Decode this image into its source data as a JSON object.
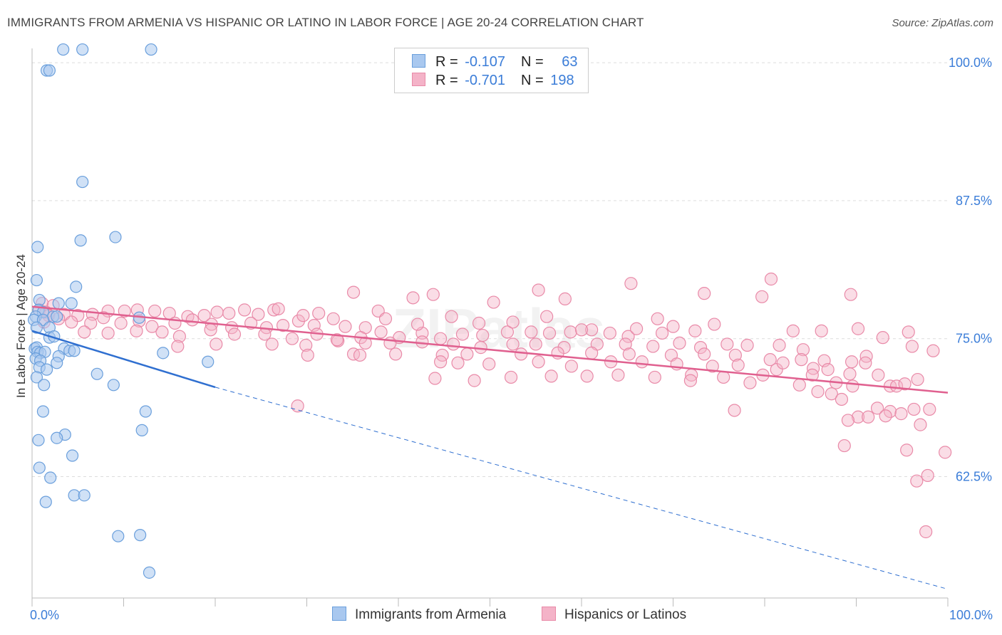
{
  "title": "IMMIGRANTS FROM ARMENIA VS HISPANIC OR LATINO IN LABOR FORCE | AGE 20-24 CORRELATION CHART",
  "source": "Source: ZipAtlas.com",
  "watermark": "ZIPatlas",
  "legend": {
    "rows": [
      {
        "r_label": "R = ",
        "r_value": "-0.107",
        "n_label": "N = ",
        "n_value": "63"
      },
      {
        "r_label": "R = ",
        "r_value": "-0.701",
        "n_label": "N = ",
        "n_value": "198"
      }
    ]
  },
  "colors": {
    "blue_fill": "#a9c8ef",
    "blue_stroke": "#6a9fdc",
    "blue_line": "#2f6fd0",
    "pink_fill": "#f4b3c8",
    "pink_stroke": "#e98aa8",
    "pink_line": "#e0608f",
    "axis_label": "#3b7dd8",
    "grid": "#dddddd"
  },
  "chart_data": {
    "type": "scatter",
    "title": "IMMIGRANTS FROM ARMENIA VS HISPANIC OR LATINO IN LABOR FORCE | AGE 20-24 CORRELATION CHART",
    "xlabel": "",
    "ylabel": "In Labor Force | Age 20-24",
    "xlim": [
      0,
      100
    ],
    "ylim": [
      51.5,
      101.3
    ],
    "x_tick_labels": [
      "0.0%",
      "100.0%"
    ],
    "y_ticks": [
      100.0,
      87.5,
      75.0,
      62.5
    ],
    "y_tick_labels": [
      "100.0%",
      "87.5%",
      "75.0%",
      "62.5%"
    ],
    "grid": true,
    "legend_position": "bottom",
    "series": [
      {
        "name": "Immigrants from Armenia",
        "color": "#a9c8ef",
        "trend": {
          "x": [
            0,
            20
          ],
          "y": [
            75.7,
            70.6
          ],
          "dashed_to": [
            100,
            52.3
          ]
        },
        "points": [
          [
            3.4,
            101.2
          ],
          [
            5.5,
            101.2
          ],
          [
            13.0,
            101.2
          ],
          [
            1.6,
            99.3
          ],
          [
            1.9,
            99.3
          ],
          [
            5.5,
            89.2
          ],
          [
            5.3,
            83.9
          ],
          [
            9.1,
            84.2
          ],
          [
            0.6,
            83.3
          ],
          [
            0.5,
            80.3
          ],
          [
            4.8,
            79.7
          ],
          [
            0.8,
            78.5
          ],
          [
            2.9,
            78.2
          ],
          [
            4.3,
            78.2
          ],
          [
            0.7,
            77.6
          ],
          [
            1.2,
            77.4
          ],
          [
            0.4,
            77.0
          ],
          [
            2.3,
            77.0
          ],
          [
            2.7,
            77.0
          ],
          [
            0.2,
            76.7
          ],
          [
            1.2,
            76.7
          ],
          [
            11.7,
            76.9
          ],
          [
            0.5,
            76.0
          ],
          [
            1.9,
            76.0
          ],
          [
            1.9,
            75.1
          ],
          [
            2.4,
            75.2
          ],
          [
            0.3,
            74.1
          ],
          [
            0.5,
            74.2
          ],
          [
            3.5,
            74.1
          ],
          [
            4.1,
            73.9
          ],
          [
            4.6,
            73.9
          ],
          [
            0.6,
            73.8
          ],
          [
            0.9,
            73.7
          ],
          [
            1.4,
            73.8
          ],
          [
            2.9,
            73.4
          ],
          [
            14.3,
            73.7
          ],
          [
            0.4,
            73.2
          ],
          [
            0.9,
            73.0
          ],
          [
            2.7,
            72.8
          ],
          [
            19.2,
            72.9
          ],
          [
            0.8,
            72.4
          ],
          [
            1.6,
            72.2
          ],
          [
            7.1,
            71.8
          ],
          [
            0.5,
            71.5
          ],
          [
            1.3,
            70.8
          ],
          [
            8.9,
            70.8
          ],
          [
            1.2,
            68.4
          ],
          [
            12.4,
            68.4
          ],
          [
            12.0,
            66.7
          ],
          [
            3.6,
            66.3
          ],
          [
            0.7,
            65.8
          ],
          [
            2.7,
            66.0
          ],
          [
            4.4,
            64.4
          ],
          [
            0.8,
            63.3
          ],
          [
            2.0,
            62.4
          ],
          [
            1.5,
            60.2
          ],
          [
            4.6,
            60.8
          ],
          [
            5.7,
            60.8
          ],
          [
            9.4,
            57.1
          ],
          [
            11.8,
            57.2
          ],
          [
            12.8,
            53.8
          ]
        ]
      },
      {
        "name": "Hispanics or Latinos",
        "color": "#f4b3c8",
        "trend": {
          "x": [
            0,
            100
          ],
          "y": [
            77.9,
            70.1
          ]
        },
        "points": [
          [
            1.1,
            78.2
          ],
          [
            2.3,
            78.0
          ],
          [
            0.8,
            77.6
          ],
          [
            1.5,
            77.4
          ],
          [
            1.8,
            77.1
          ],
          [
            3.5,
            77.2
          ],
          [
            5.0,
            77.1
          ],
          [
            6.6,
            77.2
          ],
          [
            8.3,
            77.5
          ],
          [
            10.1,
            77.5
          ],
          [
            11.5,
            77.6
          ],
          [
            13.4,
            77.5
          ],
          [
            15.0,
            77.3
          ],
          [
            17.0,
            77.0
          ],
          [
            18.8,
            77.1
          ],
          [
            20.2,
            77.4
          ],
          [
            21.5,
            77.3
          ],
          [
            23.2,
            77.6
          ],
          [
            24.7,
            77.2
          ],
          [
            26.4,
            77.6
          ],
          [
            1.3,
            76.5
          ],
          [
            2.9,
            76.8
          ],
          [
            4.3,
            76.5
          ],
          [
            6.4,
            76.4
          ],
          [
            7.8,
            76.9
          ],
          [
            9.7,
            76.4
          ],
          [
            11.7,
            76.6
          ],
          [
            13.1,
            76.1
          ],
          [
            15.6,
            76.4
          ],
          [
            17.5,
            76.7
          ],
          [
            19.6,
            76.3
          ],
          [
            21.8,
            76.0
          ],
          [
            23.9,
            76.4
          ],
          [
            25.6,
            76.0
          ],
          [
            27.4,
            76.2
          ],
          [
            29.1,
            76.6
          ],
          [
            30.8,
            76.2
          ],
          [
            32.9,
            76.8
          ],
          [
            34.2,
            76.1
          ],
          [
            36.4,
            76.0
          ],
          [
            5.7,
            75.6
          ],
          [
            8.3,
            75.5
          ],
          [
            11.4,
            75.7
          ],
          [
            14.2,
            75.6
          ],
          [
            16.1,
            75.2
          ],
          [
            19.5,
            75.8
          ],
          [
            22.1,
            75.4
          ],
          [
            25.4,
            75.4
          ],
          [
            28.4,
            75.0
          ],
          [
            31.1,
            75.4
          ],
          [
            33.4,
            74.8
          ],
          [
            35.9,
            75.1
          ],
          [
            38.1,
            75.6
          ],
          [
            40.1,
            75.1
          ],
          [
            42.6,
            75.5
          ],
          [
            44.6,
            75.0
          ],
          [
            47.0,
            75.4
          ],
          [
            49.2,
            75.3
          ],
          [
            51.9,
            75.6
          ],
          [
            54.5,
            75.6
          ],
          [
            56.5,
            75.5
          ],
          [
            58.8,
            75.6
          ],
          [
            61.1,
            75.8
          ],
          [
            63.1,
            75.5
          ],
          [
            65.1,
            75.2
          ],
          [
            68.8,
            75.5
          ],
          [
            72.4,
            75.7
          ],
          [
            15.9,
            74.3
          ],
          [
            20.1,
            74.5
          ],
          [
            26.2,
            74.5
          ],
          [
            29.9,
            74.4
          ],
          [
            33.3,
            74.9
          ],
          [
            36.4,
            74.6
          ],
          [
            39.1,
            74.6
          ],
          [
            42.6,
            74.7
          ],
          [
            46.0,
            74.5
          ],
          [
            49.0,
            74.2
          ],
          [
            52.5,
            74.5
          ],
          [
            55.0,
            74.5
          ],
          [
            58.1,
            74.2
          ],
          [
            61.7,
            74.5
          ],
          [
            64.8,
            74.5
          ],
          [
            67.8,
            74.3
          ],
          [
            70.7,
            74.6
          ],
          [
            73.0,
            74.2
          ],
          [
            75.9,
            74.5
          ],
          [
            78.1,
            74.4
          ],
          [
            81.6,
            74.4
          ],
          [
            84.2,
            74.0
          ],
          [
            30.1,
            73.5
          ],
          [
            35.1,
            73.6
          ],
          [
            39.7,
            73.6
          ],
          [
            44.8,
            73.5
          ],
          [
            47.5,
            73.6
          ],
          [
            53.4,
            73.6
          ],
          [
            57.4,
            73.7
          ],
          [
            61.1,
            73.7
          ],
          [
            65.2,
            73.6
          ],
          [
            69.8,
            73.5
          ],
          [
            73.4,
            73.6
          ],
          [
            76.8,
            73.5
          ],
          [
            80.6,
            73.1
          ],
          [
            84.0,
            73.1
          ],
          [
            86.5,
            73.0
          ],
          [
            89.5,
            72.9
          ],
          [
            91.1,
            73.4
          ],
          [
            35.8,
            73.5
          ],
          [
            44.6,
            72.9
          ],
          [
            46.5,
            72.8
          ],
          [
            49.9,
            72.7
          ],
          [
            55.3,
            72.9
          ],
          [
            58.9,
            72.5
          ],
          [
            63.2,
            72.9
          ],
          [
            66.6,
            72.9
          ],
          [
            70.4,
            72.7
          ],
          [
            74.3,
            72.5
          ],
          [
            77.1,
            72.6
          ],
          [
            81.3,
            72.2
          ],
          [
            82.0,
            72.8
          ],
          [
            85.3,
            72.3
          ],
          [
            86.9,
            72.2
          ],
          [
            89.3,
            71.8
          ],
          [
            91.0,
            72.8
          ],
          [
            44.0,
            71.4
          ],
          [
            48.3,
            71.2
          ],
          [
            52.3,
            71.5
          ],
          [
            56.7,
            71.6
          ],
          [
            60.6,
            71.6
          ],
          [
            64.0,
            71.7
          ],
          [
            68.0,
            71.5
          ],
          [
            72.0,
            71.7
          ],
          [
            75.5,
            71.5
          ],
          [
            79.8,
            71.7
          ],
          [
            85.2,
            71.7
          ],
          [
            92.4,
            71.7
          ],
          [
            96.7,
            71.3
          ],
          [
            87.8,
            71.0
          ],
          [
            93.7,
            70.7
          ],
          [
            71.9,
            71.2
          ],
          [
            78.4,
            71.0
          ],
          [
            83.8,
            70.8
          ],
          [
            89.6,
            70.7
          ],
          [
            94.4,
            70.7
          ],
          [
            85.8,
            70.2
          ],
          [
            87.3,
            70.0
          ],
          [
            88.4,
            69.5
          ],
          [
            95.3,
            70.9
          ],
          [
            29.0,
            68.9
          ],
          [
            76.7,
            68.5
          ],
          [
            92.3,
            68.7
          ],
          [
            93.7,
            68.4
          ],
          [
            94.9,
            68.2
          ],
          [
            96.3,
            68.6
          ],
          [
            98.0,
            68.6
          ],
          [
            90.2,
            67.9
          ],
          [
            91.3,
            67.9
          ],
          [
            93.2,
            68.0
          ],
          [
            89.1,
            67.6
          ],
          [
            97.0,
            67.2
          ],
          [
            88.7,
            65.3
          ],
          [
            95.5,
            64.9
          ],
          [
            99.7,
            64.7
          ],
          [
            96.6,
            62.1
          ],
          [
            97.8,
            62.6
          ],
          [
            97.6,
            57.5
          ],
          [
            35.1,
            79.2
          ],
          [
            43.8,
            79.0
          ],
          [
            55.3,
            79.4
          ],
          [
            58.2,
            78.6
          ],
          [
            65.4,
            80.0
          ],
          [
            73.4,
            79.1
          ],
          [
            80.7,
            80.4
          ],
          [
            89.4,
            79.0
          ],
          [
            79.7,
            78.8
          ],
          [
            41.6,
            78.7
          ],
          [
            50.4,
            78.3
          ],
          [
            26.9,
            77.7
          ],
          [
            29.6,
            77.1
          ],
          [
            31.3,
            77.3
          ],
          [
            37.8,
            77.5
          ],
          [
            38.6,
            76.8
          ],
          [
            45.8,
            77.0
          ],
          [
            42.1,
            76.3
          ],
          [
            48.8,
            76.4
          ],
          [
            60.0,
            75.8
          ],
          [
            66.0,
            75.9
          ],
          [
            70.0,
            76.1
          ],
          [
            74.5,
            76.3
          ],
          [
            83.1,
            75.7
          ],
          [
            86.2,
            75.7
          ],
          [
            90.2,
            75.9
          ],
          [
            92.9,
            75.1
          ],
          [
            96.1,
            74.3
          ],
          [
            98.4,
            73.9
          ],
          [
            95.7,
            75.6
          ],
          [
            68.3,
            76.8
          ],
          [
            52.5,
            76.5
          ],
          [
            56.2,
            77.0
          ]
        ]
      }
    ]
  },
  "bottom_legend": [
    {
      "label": "Immigrants from Armenia"
    },
    {
      "label": "Hispanics or Latinos"
    }
  ]
}
